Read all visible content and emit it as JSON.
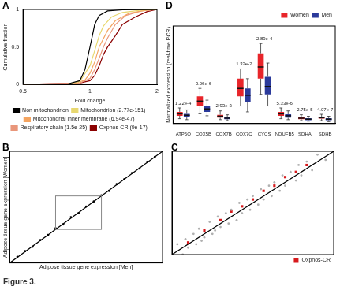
{
  "chart_data": [
    {
      "type": "line",
      "panel_label": "A",
      "log": "x",
      "grid": false,
      "legend": "bottom",
      "xlabel": "Fold change",
      "ylabel": "Cumulative fraction",
      "xlim": [
        0.5,
        2
      ],
      "xticks": [
        0.5,
        1,
        2
      ],
      "ylim": [
        0,
        1
      ],
      "yticks": [
        0,
        0.5,
        1
      ],
      "series": [
        {
          "name": "Non mitochondrion",
          "color": "#000000",
          "x": [
            0.5,
            0.8,
            0.9,
            0.95,
            1.0,
            1.05,
            1.1,
            1.2,
            1.4,
            2
          ],
          "values": [
            0,
            0.01,
            0.05,
            0.2,
            0.5,
            0.8,
            0.92,
            0.98,
            0.995,
            1
          ]
        },
        {
          "name": "Mitochondrion (2.77e-151)",
          "color": "#e8d870",
          "x": [
            0.5,
            0.8,
            0.9,
            1.0,
            1.05,
            1.1,
            1.15,
            1.25,
            1.4,
            1.7,
            2
          ],
          "values": [
            0,
            0.01,
            0.04,
            0.25,
            0.45,
            0.65,
            0.78,
            0.9,
            0.96,
            0.99,
            1
          ]
        },
        {
          "name": "Mitochondrial inner membrane (6.94e-47)",
          "color": "#f4a460",
          "x": [
            0.5,
            0.85,
            0.95,
            1.0,
            1.05,
            1.1,
            1.2,
            1.3,
            1.5,
            1.8,
            2
          ],
          "values": [
            0,
            0.01,
            0.06,
            0.15,
            0.3,
            0.5,
            0.72,
            0.85,
            0.95,
            0.99,
            1
          ]
        },
        {
          "name": "Respiratory chain (1.5e-25)",
          "color": "#e9967a",
          "x": [
            0.5,
            0.9,
            1.0,
            1.05,
            1.1,
            1.15,
            1.2,
            1.3,
            1.45,
            1.7,
            2
          ],
          "values": [
            0,
            0.02,
            0.08,
            0.2,
            0.35,
            0.5,
            0.62,
            0.8,
            0.92,
            0.98,
            1
          ]
        },
        {
          "name": "Oxphos-CR (9e-17)",
          "color": "#8b0000",
          "x": [
            0.5,
            0.9,
            1.0,
            1.05,
            1.1,
            1.15,
            1.2,
            1.3,
            1.4,
            1.6,
            1.8,
            2
          ],
          "values": [
            0,
            0.02,
            0.05,
            0.12,
            0.25,
            0.4,
            0.5,
            0.65,
            0.8,
            0.9,
            0.97,
            1
          ]
        }
      ]
    },
    {
      "type": "scatter",
      "panel_label": "B",
      "grid": false,
      "tick_labels": false,
      "xlabel": "Adipose tissue gene expression [Men]",
      "ylabel": "Adipose tissue gene expression [Women]",
      "xlim": [
        0,
        10
      ],
      "ylim": [
        0,
        10
      ],
      "inset_region": [
        3,
        6
      ],
      "series": [
        {
          "color": "#000000",
          "marker": "circle",
          "x": [
            0.5,
            1,
            1.5,
            2,
            2.5,
            3,
            3.5,
            4,
            4.5,
            5,
            5.5,
            6,
            6.5,
            7,
            7.5,
            8,
            8.5,
            9,
            9.5
          ],
          "values": [
            0.55,
            1.05,
            1.45,
            2.05,
            2.5,
            3.1,
            3.45,
            4.1,
            4.45,
            5.05,
            5.5,
            6.05,
            6.45,
            7.05,
            7.5,
            8.05,
            8.45,
            9.05,
            9.5
          ]
        },
        {
          "type": "line",
          "color": "#000000",
          "x": [
            0,
            10
          ],
          "values": [
            0,
            10
          ]
        }
      ]
    },
    {
      "type": "scatter",
      "panel_label": "C",
      "grid": false,
      "tick_labels": false,
      "legend": "lower right",
      "xlim": [
        3,
        6
      ],
      "ylim": [
        3,
        6
      ],
      "series": [
        {
          "color": "#b0b0b0",
          "marker": "circle",
          "x": [
            3.1,
            3.2,
            3.25,
            3.3,
            3.4,
            3.45,
            3.5,
            3.55,
            3.6,
            3.7,
            3.75,
            3.8,
            3.85,
            3.9,
            4.0,
            4.05,
            4.1,
            4.2,
            4.25,
            4.3,
            4.4,
            4.45,
            4.5,
            4.6,
            4.65,
            4.7,
            4.8,
            4.85,
            4.9,
            5.0,
            5.05,
            5.1,
            5.2,
            5.3,
            5.35,
            5.4,
            5.5,
            5.6,
            5.7,
            5.85
          ],
          "values": [
            3.3,
            3.0,
            3.45,
            3.2,
            3.6,
            3.3,
            3.75,
            3.4,
            3.5,
            3.95,
            3.6,
            3.7,
            4.1,
            3.8,
            4.2,
            3.9,
            4.3,
            4.0,
            4.5,
            4.2,
            4.6,
            4.3,
            4.7,
            4.45,
            4.9,
            4.6,
            5.0,
            4.7,
            5.1,
            4.85,
            5.3,
            5.0,
            5.4,
            5.15,
            5.6,
            5.3,
            5.7,
            5.45,
            5.9,
            5.75
          ]
        },
        {
          "name": "Oxphos-CR",
          "color": "#d7191c",
          "marker": "square",
          "x": [
            3.3,
            3.6,
            3.9,
            4.1,
            4.3,
            4.5,
            4.7,
            4.9,
            5.1,
            5.3,
            5.5
          ],
          "values": [
            3.35,
            3.7,
            4.0,
            4.25,
            4.4,
            4.6,
            4.85,
            5.0,
            5.25,
            5.4,
            5.6
          ]
        },
        {
          "type": "line",
          "color": "#000000",
          "x": [
            3,
            6
          ],
          "values": [
            3,
            6
          ]
        }
      ]
    },
    {
      "type": "box",
      "panel_label": "D",
      "grid": false,
      "tick_labels": "x",
      "legend": "top right",
      "ylabel": "Normalized expression (real-time PCR)",
      "ylim": [
        0,
        10
      ],
      "categories": [
        "ATP5O",
        "COX5B",
        "COX7B",
        "COX7C",
        "CYCS",
        "NDUFB5",
        "SDHA",
        "SDHB"
      ],
      "series": [
        {
          "name": "Women",
          "color": "#e8252a",
          "q1": [
            0.8,
            1.8,
            0.6,
            2.8,
            4.6,
            0.8,
            0.45,
            0.5
          ],
          "median": [
            1.0,
            2.3,
            0.75,
            3.6,
            5.8,
            1.0,
            0.55,
            0.6
          ],
          "q3": [
            1.2,
            2.8,
            0.9,
            4.6,
            7.2,
            1.2,
            0.65,
            0.7
          ],
          "whisker_low": [
            0.5,
            1.0,
            0.4,
            1.8,
            3.0,
            0.5,
            0.3,
            0.3
          ],
          "whisker_high": [
            1.6,
            3.6,
            1.3,
            5.6,
            8.2,
            1.6,
            0.9,
            0.95
          ]
        },
        {
          "name": "Men",
          "color": "#2b3a9b",
          "q1": [
            0.7,
            1.2,
            0.45,
            2.2,
            3.0,
            0.6,
            0.35,
            0.35
          ],
          "median": [
            0.85,
            1.5,
            0.55,
            2.9,
            3.8,
            0.8,
            0.45,
            0.45
          ],
          "q3": [
            1.0,
            1.8,
            0.65,
            3.6,
            4.8,
            0.95,
            0.55,
            0.55
          ],
          "whisker_low": [
            0.4,
            0.8,
            0.3,
            1.2,
            1.8,
            0.4,
            0.25,
            0.2
          ],
          "whisker_high": [
            1.4,
            2.4,
            0.9,
            4.6,
            6.2,
            1.3,
            0.75,
            0.75
          ]
        }
      ],
      "annotations": [
        {
          "category": "ATP5O",
          "text": "1.22e-4"
        },
        {
          "category": "COX5B",
          "text": "3.06e-6"
        },
        {
          "category": "COX7B",
          "text": "2.93e-3"
        },
        {
          "category": "COX7C",
          "text": "1.32e-2"
        },
        {
          "category": "CYCS",
          "text": "2.89e-4"
        },
        {
          "category": "NDUFB5",
          "text": "5.33e-6"
        },
        {
          "category": "SDHA",
          "text": "2.75e-5"
        },
        {
          "category": "SDHB",
          "text": "4.07e-7"
        }
      ]
    }
  ],
  "caption": "Figure 3."
}
